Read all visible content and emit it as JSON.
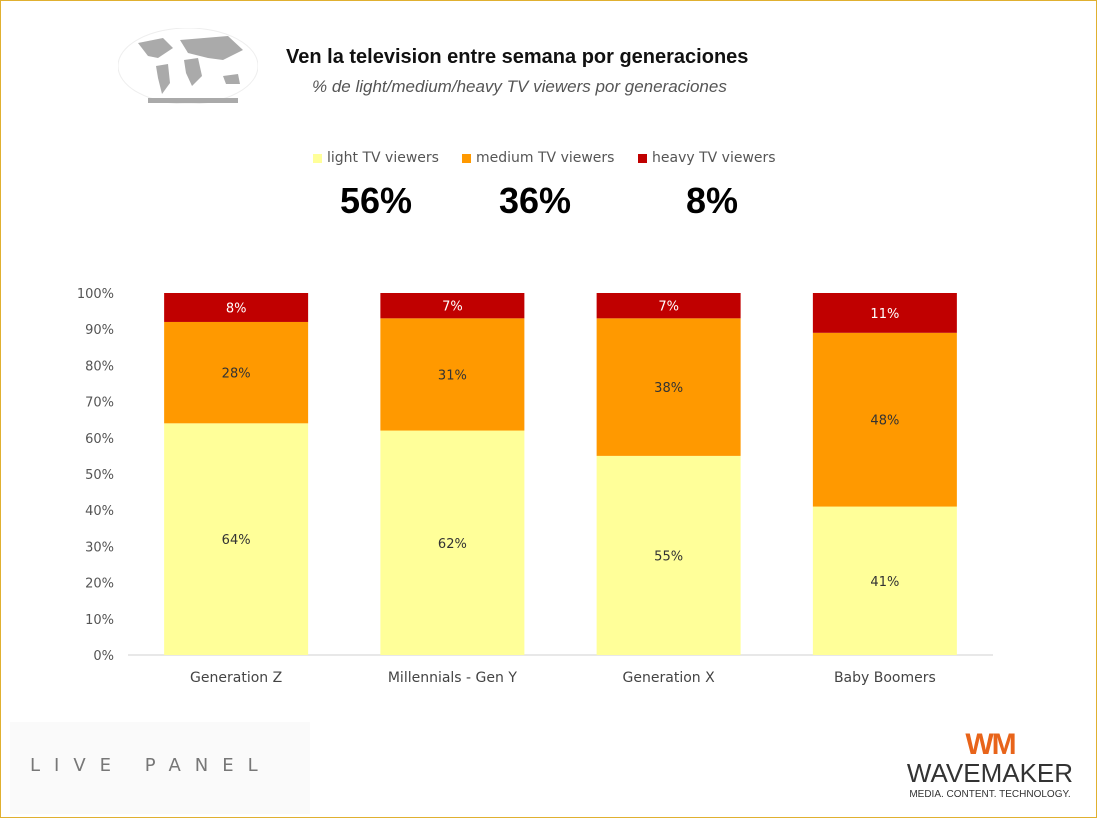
{
  "header": {
    "title": "Ven la television entre semana por generaciones",
    "subtitle": "% de light/medium/heavy TV viewers por generaciones",
    "map_icon": "world-map-icon"
  },
  "summary": [
    {
      "label": "light TV viewers",
      "value": "56%",
      "color": "#FFFF99"
    },
    {
      "label": "medium TV viewers",
      "value": "36%",
      "color": "#FF9900"
    },
    {
      "label": "heavy TV viewers",
      "value": "8%",
      "color": "#C00000"
    }
  ],
  "chart_data": {
    "type": "bar",
    "stacked": true,
    "title": "Ven la television entre semana por generaciones",
    "subtitle": "% de light/medium/heavy TV viewers por generaciones",
    "categories": [
      "Generation Z",
      "Millennials - Gen Y",
      "Generation X",
      "Baby Boomers"
    ],
    "series": [
      {
        "name": "light TV viewers",
        "color": "#FFFF99",
        "label_color": "#333333",
        "values": [
          64,
          62,
          55,
          41
        ]
      },
      {
        "name": "medium TV viewers",
        "color": "#FF9900",
        "label_color": "#333333",
        "values": [
          28,
          31,
          38,
          48
        ]
      },
      {
        "name": "heavy TV viewers",
        "color": "#C00000",
        "label_color": "#FFFFFF",
        "values": [
          8,
          7,
          7,
          11
        ]
      }
    ],
    "ylim": [
      0,
      100
    ],
    "yticks": [
      "0%",
      "10%",
      "20%",
      "30%",
      "40%",
      "50%",
      "60%",
      "70%",
      "80%",
      "90%",
      "100%"
    ],
    "xlabel": "",
    "ylabel": "",
    "grid": false,
    "legend": "top"
  },
  "footer": {
    "livepanel": "LIVE PANEL",
    "wavemaker_logo": "WM",
    "wavemaker_name": "WAVEMAKER",
    "wavemaker_tagline": "MEDIA. CONTENT. TECHNOLOGY."
  }
}
